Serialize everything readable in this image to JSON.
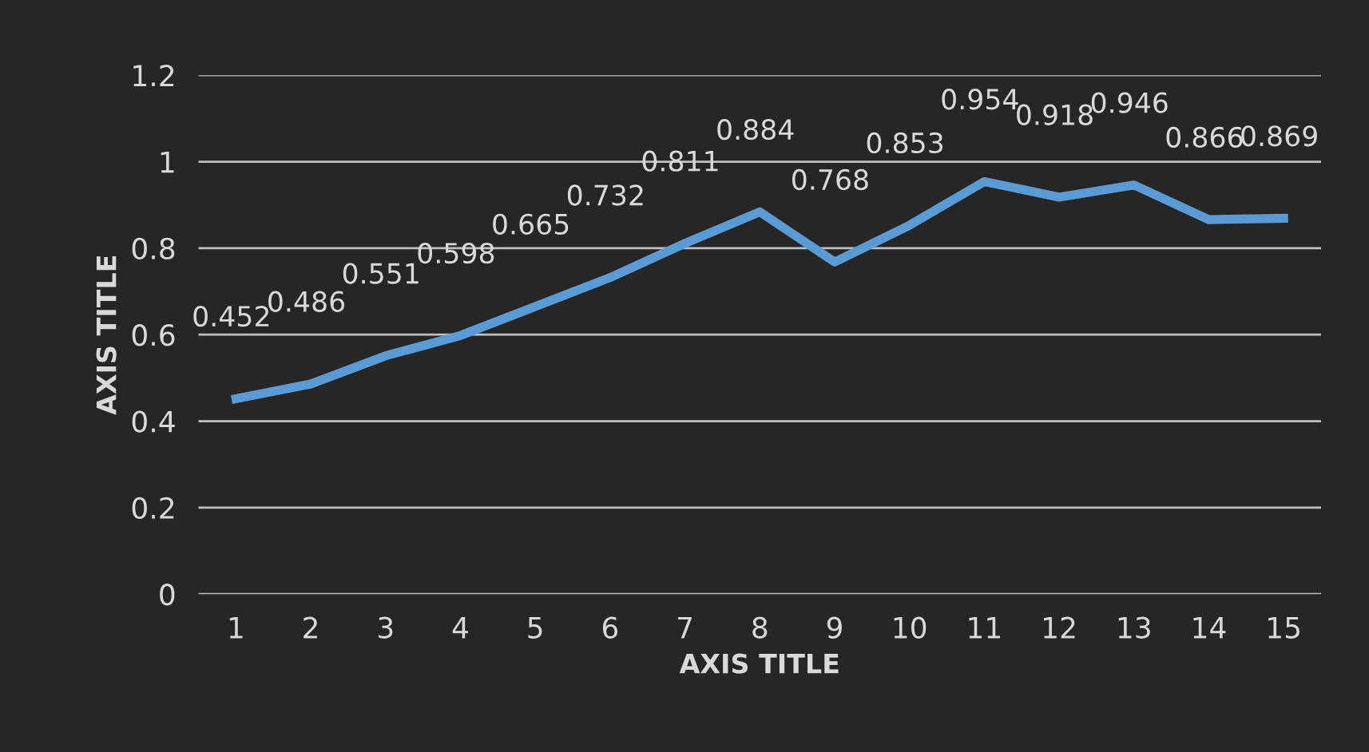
{
  "chart_data": {
    "type": "line",
    "xlabel": "AXIS TITLE",
    "ylabel": "AXIS TITLE",
    "categories": [
      "1",
      "2",
      "3",
      "4",
      "5",
      "6",
      "7",
      "8",
      "9",
      "10",
      "11",
      "12",
      "13",
      "14",
      "15"
    ],
    "series": [
      {
        "color": "#5b9bd5",
        "values": [
          0.452,
          0.486,
          0.551,
          0.598,
          0.665,
          0.732,
          0.811,
          0.884,
          0.768,
          0.853,
          0.954,
          0.918,
          0.946,
          0.866,
          0.869
        ]
      }
    ],
    "ylim": [
      0,
      1.2
    ],
    "yticks": [
      0,
      0.2,
      0.4,
      0.6,
      0.8,
      1,
      1.2
    ],
    "grid": "y",
    "data_labels": true,
    "marker": "none",
    "line_style": "solid"
  }
}
